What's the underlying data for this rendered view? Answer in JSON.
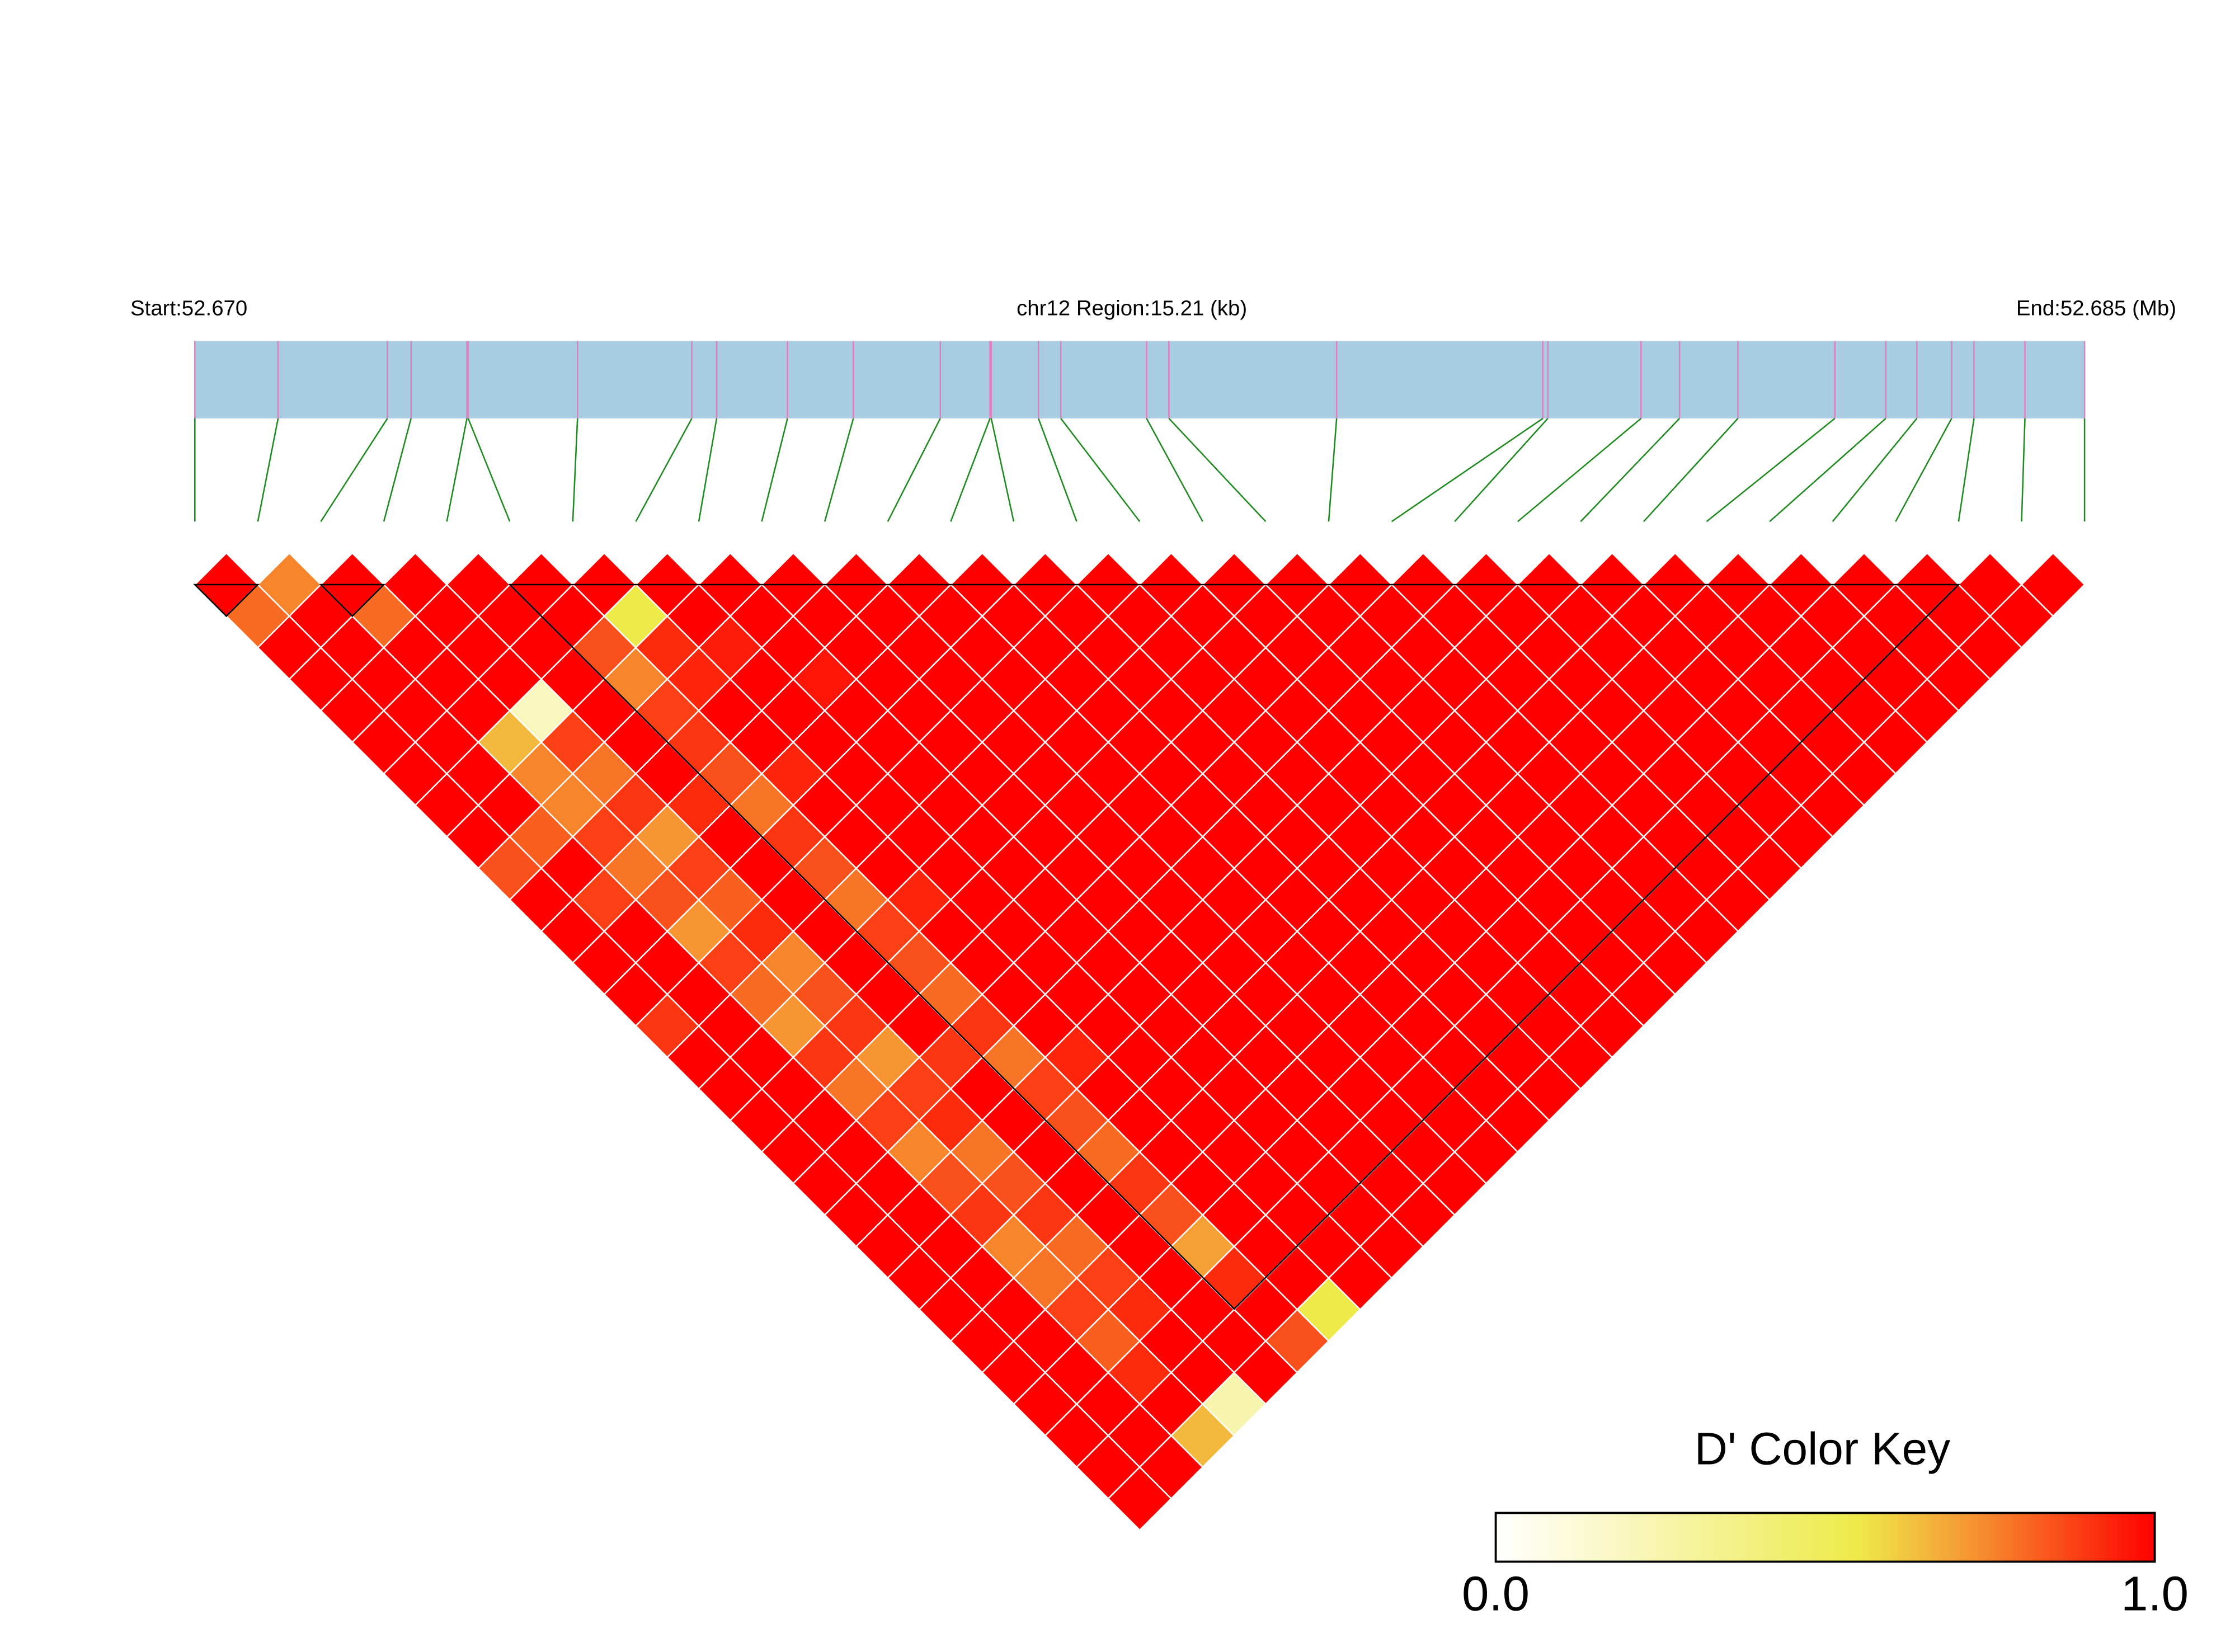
{
  "chart_data": {
    "type": "ld_heatmap",
    "start_label": "Start:52.670",
    "region_label": "chr12 Region:15.21 (kb)",
    "end_label": "End:52.685 (Mb)",
    "xlim": [
      52.67,
      52.68521
    ],
    "bar_color": "#a8cde2",
    "snp_line_color": "#e07fbf",
    "connector_color": "#1f8a1f",
    "snp_positions": [
      52.67,
      52.67067,
      52.67155,
      52.67174,
      52.67219,
      52.6722,
      52.67308,
      52.674,
      52.6742,
      52.67477,
      52.6753,
      52.676,
      52.6764,
      52.67641,
      52.67679,
      52.67697,
      52.67766,
      52.67784,
      52.67919,
      52.68085,
      52.68089,
      52.68164,
      52.68195,
      52.68242,
      52.6832,
      52.68361,
      52.68386,
      52.68414,
      52.68432,
      52.68473,
      52.68521
    ],
    "dprime": [
      [
        1,
        0.8,
        1,
        1,
        1,
        1,
        1,
        1,
        1,
        0.85,
        1,
        1,
        1,
        1,
        0.9,
        1,
        1,
        1,
        1,
        1,
        1,
        1,
        1,
        1,
        1,
        1,
        1,
        1,
        1,
        1
      ],
      [
        0.75,
        1,
        1,
        1,
        1,
        1,
        1,
        1,
        0.82,
        1,
        0.88,
        1,
        1,
        1,
        1,
        1,
        1,
        1,
        1,
        1,
        1,
        1,
        1,
        1,
        1,
        1,
        1,
        1,
        1
      ],
      [
        1,
        0.8,
        1,
        1,
        1,
        0.65,
        0.75,
        0.75,
        0.88,
        0.78,
        0.85,
        0.72,
        0.88,
        0.8,
        0.72,
        0.9,
        0.78,
        0.88,
        0.75,
        0.85,
        0.9,
        0.75,
        0.78,
        0.88,
        0.82,
        0.92,
        1,
        0.65
      ],
      [
        1,
        1,
        1,
        1,
        0.2,
        0.88,
        0.78,
        0.9,
        0.72,
        0.88,
        0.82,
        0.92,
        0.75,
        0.85,
        0.9,
        0.72,
        0.88,
        0.92,
        0.78,
        0.85,
        0.9,
        0.8,
        0.88,
        0.92,
        1,
        1,
        0.25
      ],
      [
        1,
        1,
        1,
        1,
        1,
        1,
        1,
        0.92,
        1,
        1,
        1,
        1,
        1,
        1,
        1,
        0.9,
        1,
        1,
        1,
        1,
        1,
        1,
        1,
        1,
        1,
        1
      ],
      [
        1,
        1,
        0.85,
        0.75,
        0.88,
        0.9,
        0.85,
        0.78,
        0.9,
        0.85,
        0.78,
        0.88,
        0.85,
        0.8,
        0.9,
        0.78,
        0.88,
        0.85,
        0.8,
        0.9,
        0.85,
        0.7,
        0.92,
        1,
        0.85
      ],
      [
        1,
        0.55,
        0.92,
        0.93,
        1,
        1,
        0.93,
        1,
        1,
        1,
        0.93,
        1,
        1,
        1,
        1,
        0.93,
        1,
        1,
        1,
        1,
        1,
        1,
        1,
        0.55
      ],
      [
        1,
        1,
        0.95,
        1,
        1,
        1,
        1,
        1,
        1,
        1,
        1,
        1,
        1,
        1,
        1,
        1,
        1,
        1,
        1,
        1,
        1,
        1,
        1
      ],
      [
        1,
        1,
        1,
        0.96,
        1,
        1,
        1,
        1,
        1,
        1,
        1,
        1,
        1,
        1,
        1,
        1,
        1,
        1,
        1,
        1,
        1,
        1
      ],
      [
        1,
        1,
        1,
        1,
        1,
        1,
        1,
        1,
        1,
        1,
        1,
        1,
        1,
        1,
        1,
        1,
        1,
        1,
        1,
        1,
        1
      ],
      [
        1,
        1,
        1,
        1,
        1,
        1,
        1,
        1,
        1,
        1,
        1,
        1,
        1,
        1,
        1,
        1,
        1,
        1,
        1,
        1
      ],
      [
        1,
        1,
        1,
        1,
        1,
        1,
        1,
        1,
        1,
        1,
        1,
        1,
        1,
        1,
        1,
        1,
        1,
        1,
        1
      ],
      [
        1,
        1,
        1,
        1,
        1,
        1,
        1,
        1,
        1,
        1,
        1,
        1,
        1,
        1,
        1,
        1,
        1,
        1
      ],
      [
        1,
        1,
        1,
        1,
        1,
        1,
        1,
        1,
        1,
        1,
        1,
        1,
        1,
        1,
        1,
        1,
        1
      ],
      [
        1,
        1,
        1,
        1,
        1,
        1,
        1,
        1,
        1,
        1,
        1,
        1,
        1,
        1,
        1,
        1
      ],
      [
        1,
        1,
        1,
        1,
        1,
        1,
        1,
        1,
        1,
        1,
        1,
        1,
        1,
        1,
        1
      ],
      [
        1,
        1,
        1,
        1,
        1,
        1,
        1,
        1,
        1,
        1,
        1,
        1,
        1,
        1
      ],
      [
        1,
        1,
        1,
        1,
        1,
        1,
        1,
        1,
        1,
        1,
        1,
        1,
        1
      ],
      [
        1,
        1,
        1,
        1,
        1,
        1,
        1,
        1,
        1,
        1,
        1,
        1
      ],
      [
        1,
        1,
        1,
        1,
        1,
        1,
        1,
        1,
        1,
        1,
        1
      ],
      [
        1,
        1,
        1,
        1,
        1,
        1,
        1,
        1,
        1,
        1
      ],
      [
        1,
        1,
        1,
        1,
        1,
        1,
        1,
        1,
        1
      ],
      [
        1,
        1,
        1,
        1,
        1,
        1,
        1,
        1
      ],
      [
        1,
        1,
        1,
        1,
        1,
        1,
        1
      ],
      [
        1,
        1,
        1,
        1,
        1,
        1
      ],
      [
        1,
        1,
        1,
        1,
        1
      ],
      [
        1,
        1,
        1,
        1
      ],
      [
        1,
        1,
        1
      ],
      [
        1,
        1
      ],
      [
        1
      ]
    ],
    "ld_blocks": [
      [
        0,
        1
      ],
      [
        2,
        3
      ],
      [
        5,
        28
      ]
    ],
    "colorbar": {
      "title": "D' Color Key",
      "ticks": [
        {
          "value": 0,
          "label": "0.0"
        },
        {
          "value": 1,
          "label": "1.0"
        }
      ],
      "colormap": [
        {
          "value": 0,
          "color": "#ffffff"
        },
        {
          "value": 0.55,
          "color": "#eeea4a"
        },
        {
          "value": 0.7,
          "color": "#f5a035"
        },
        {
          "value": 1,
          "color": "#ff0000"
        }
      ]
    }
  }
}
